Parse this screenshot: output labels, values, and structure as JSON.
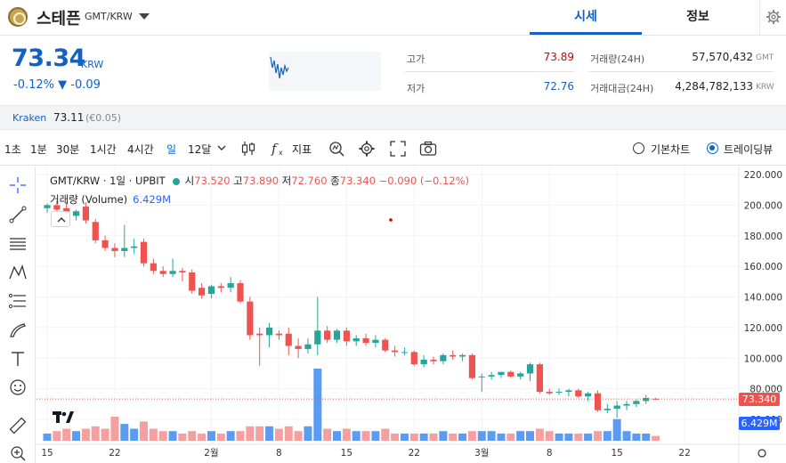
{
  "header": {
    "coin_name": "스테픈",
    "pair": "GMT/KRW",
    "tabs": [
      {
        "label": "시세",
        "active": true
      },
      {
        "label": "정보",
        "active": false
      }
    ]
  },
  "quote": {
    "price": "73.34",
    "unit": "KRW",
    "change": "-0.12% ▼ -0.09",
    "high_label": "고가",
    "high_value": "73.89",
    "low_label": "저가",
    "low_value": "72.76",
    "volume_label": "거래량(24H)",
    "volume_value": "57,570,432",
    "volume_unit": "GMT",
    "turnover_label": "거래대금(24H)",
    "turnover_value": "4,284,782,133",
    "turnover_unit": "KRW"
  },
  "exchange": {
    "name": "Kraken",
    "price": "73.11",
    "change": "(€0.05)"
  },
  "toolbar": {
    "intervals": [
      "1초",
      "1분",
      "30분",
      "1시간",
      "4시간",
      "일",
      "12달"
    ],
    "active_interval": "일",
    "indicator_label": "지표",
    "chart_modes": [
      {
        "label": "기본차트",
        "checked": false
      },
      {
        "label": "트레이딩뷰",
        "checked": true
      }
    ]
  },
  "legend": {
    "symbol": "GMT/KRW · 1일 · UPBIT",
    "open_label": "시",
    "open_value": "73.520",
    "high_label": "고",
    "high_value": "73.890",
    "low_label": "저",
    "low_value": "72.760",
    "close_label": "종",
    "close_value": "73.340",
    "change_value": "−0.090 (−0.12%)",
    "volume_label": "거래량 (Volume)",
    "volume_value": "6.429M"
  },
  "colors": {
    "accent": "#1261c4",
    "up": "#26a69a",
    "down": "#ef5350",
    "vol_up": "#5b9cf0",
    "vol_down": "#f4a0a0"
  },
  "chart_data": {
    "type": "candlestick",
    "y_ticks": [
      "220.000",
      "200.000",
      "180.000",
      "160.000",
      "140.000",
      "120.000",
      "100.000",
      "80.000",
      "60.000"
    ],
    "ylim": [
      60,
      220
    ],
    "x_ticks": [
      {
        "label": "15",
        "index": 0
      },
      {
        "label": "22",
        "index": 7
      },
      {
        "label": "2월",
        "index": 17
      },
      {
        "label": "8",
        "index": 24
      },
      {
        "label": "15",
        "index": 31
      },
      {
        "label": "22",
        "index": 38
      },
      {
        "label": "3월",
        "index": 45
      },
      {
        "label": "8",
        "index": 52
      },
      {
        "label": "15",
        "index": 59
      },
      {
        "label": "22",
        "index": 66
      }
    ],
    "last_price_tag": "73.340",
    "last_volume_tag": "6.429M",
    "candles": [
      {
        "o": 198,
        "h": 201,
        "l": 195,
        "c": 200,
        "v": 3
      },
      {
        "o": 200,
        "h": 203,
        "l": 196,
        "c": 197,
        "v": 4
      },
      {
        "o": 198,
        "h": 202,
        "l": 192,
        "c": 193,
        "v": 5
      },
      {
        "o": 193,
        "h": 197,
        "l": 190,
        "c": 196,
        "v": 4
      },
      {
        "o": 199,
        "h": 202,
        "l": 188,
        "c": 190,
        "v": 5
      },
      {
        "o": 189,
        "h": 191,
        "l": 175,
        "c": 177,
        "v": 6
      },
      {
        "o": 177,
        "h": 180,
        "l": 170,
        "c": 172,
        "v": 5
      },
      {
        "o": 172,
        "h": 175,
        "l": 166,
        "c": 170,
        "v": 10
      },
      {
        "o": 170,
        "h": 187,
        "l": 166,
        "c": 172,
        "v": 7
      },
      {
        "o": 172,
        "h": 178,
        "l": 168,
        "c": 173,
        "v": 5
      },
      {
        "o": 176,
        "h": 178,
        "l": 160,
        "c": 162,
        "v": 8
      },
      {
        "o": 162,
        "h": 165,
        "l": 155,
        "c": 157,
        "v": 5
      },
      {
        "o": 157,
        "h": 160,
        "l": 153,
        "c": 155,
        "v": 4
      },
      {
        "o": 155,
        "h": 165,
        "l": 153,
        "c": 157,
        "v": 4
      },
      {
        "o": 157,
        "h": 159,
        "l": 150,
        "c": 156,
        "v": 3
      },
      {
        "o": 156,
        "h": 158,
        "l": 142,
        "c": 144,
        "v": 4
      },
      {
        "o": 146,
        "h": 149,
        "l": 139,
        "c": 141,
        "v": 3
      },
      {
        "o": 142,
        "h": 148,
        "l": 139,
        "c": 147,
        "v": 4
      },
      {
        "o": 147,
        "h": 149,
        "l": 143,
        "c": 146,
        "v": 3
      },
      {
        "o": 146,
        "h": 153,
        "l": 143,
        "c": 149,
        "v": 4
      },
      {
        "o": 149,
        "h": 151,
        "l": 136,
        "c": 137,
        "v": 4
      },
      {
        "o": 137,
        "h": 140,
        "l": 112,
        "c": 115,
        "v": 6
      },
      {
        "o": 116,
        "h": 120,
        "l": 95,
        "c": 115,
        "v": 6
      },
      {
        "o": 115,
        "h": 123,
        "l": 107,
        "c": 120,
        "v": 6
      },
      {
        "o": 116,
        "h": 118,
        "l": 112,
        "c": 115,
        "v": 5
      },
      {
        "o": 116,
        "h": 120,
        "l": 102,
        "c": 108,
        "v": 6
      },
      {
        "o": 108,
        "h": 113,
        "l": 100,
        "c": 106,
        "v": 4
      },
      {
        "o": 106,
        "h": 113,
        "l": 103,
        "c": 109,
        "v": 6
      },
      {
        "o": 109,
        "h": 140,
        "l": 102,
        "c": 118,
        "v": 30
      },
      {
        "o": 118,
        "h": 121,
        "l": 110,
        "c": 112,
        "v": 5
      },
      {
        "o": 112,
        "h": 119,
        "l": 110,
        "c": 118,
        "v": 4
      },
      {
        "o": 118,
        "h": 120,
        "l": 108,
        "c": 111,
        "v": 5
      },
      {
        "o": 111,
        "h": 115,
        "l": 108,
        "c": 113,
        "v": 4
      },
      {
        "o": 113,
        "h": 116,
        "l": 108,
        "c": 110,
        "v": 4
      },
      {
        "o": 110,
        "h": 115,
        "l": 107,
        "c": 112,
        "v": 4
      },
      {
        "o": 112,
        "h": 113,
        "l": 104,
        "c": 105,
        "v": 5
      },
      {
        "o": 105,
        "h": 108,
        "l": 101,
        "c": 104,
        "v": 3
      },
      {
        "o": 104,
        "h": 107,
        "l": 102,
        "c": 104,
        "v": 3
      },
      {
        "o": 104,
        "h": 105,
        "l": 95,
        "c": 96,
        "v": 3
      },
      {
        "o": 96,
        "h": 102,
        "l": 94,
        "c": 99,
        "v": 3
      },
      {
        "o": 99,
        "h": 101,
        "l": 96,
        "c": 98,
        "v": 3
      },
      {
        "o": 98,
        "h": 103,
        "l": 96,
        "c": 102,
        "v": 4
      },
      {
        "o": 102,
        "h": 105,
        "l": 99,
        "c": 101,
        "v": 3
      },
      {
        "o": 101,
        "h": 103,
        "l": 98,
        "c": 102,
        "v": 3
      },
      {
        "o": 102,
        "h": 103,
        "l": 86,
        "c": 87,
        "v": 4
      },
      {
        "o": 88,
        "h": 90,
        "l": 78,
        "c": 88,
        "v": 4
      },
      {
        "o": 88,
        "h": 91,
        "l": 86,
        "c": 89,
        "v": 4
      },
      {
        "o": 89,
        "h": 91,
        "l": 87,
        "c": 91,
        "v": 3
      },
      {
        "o": 91,
        "h": 92,
        "l": 87,
        "c": 88,
        "v": 3
      },
      {
        "o": 88,
        "h": 91,
        "l": 86,
        "c": 90,
        "v": 4
      },
      {
        "o": 90,
        "h": 97,
        "l": 85,
        "c": 96,
        "v": 4
      },
      {
        "o": 96,
        "h": 97,
        "l": 77,
        "c": 78,
        "v": 5
      },
      {
        "o": 78,
        "h": 80,
        "l": 76,
        "c": 77,
        "v": 4
      },
      {
        "o": 78,
        "h": 80,
        "l": 76,
        "c": 78,
        "v": 3
      },
      {
        "o": 78,
        "h": 80,
        "l": 75,
        "c": 79,
        "v": 3
      },
      {
        "o": 79,
        "h": 80,
        "l": 74,
        "c": 75,
        "v": 3
      },
      {
        "o": 75,
        "h": 78,
        "l": 72,
        "c": 77,
        "v": 3
      },
      {
        "o": 77,
        "h": 79,
        "l": 65,
        "c": 66,
        "v": 4
      },
      {
        "o": 66,
        "h": 70,
        "l": 64,
        "c": 67,
        "v": 4
      },
      {
        "o": 67,
        "h": 72,
        "l": 61,
        "c": 69,
        "v": 9
      },
      {
        "o": 69,
        "h": 72,
        "l": 66,
        "c": 70,
        "v": 4
      },
      {
        "o": 70,
        "h": 73,
        "l": 68,
        "c": 72,
        "v": 3
      },
      {
        "o": 72,
        "h": 76,
        "l": 70,
        "c": 74,
        "v": 3
      },
      {
        "o": 73.52,
        "h": 73.89,
        "l": 72.76,
        "c": 73.34,
        "v": 2
      }
    ]
  }
}
